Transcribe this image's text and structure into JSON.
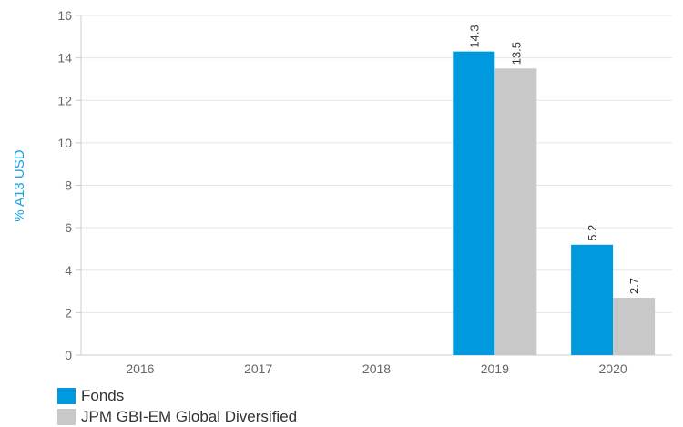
{
  "colors": {
    "fonds": "#0099dd",
    "benchmark": "#c8c8c8",
    "ylabel": "#1aa3e0"
  },
  "chart_data": {
    "type": "bar",
    "categories": [
      "2016",
      "2017",
      "2018",
      "2019",
      "2020"
    ],
    "series": [
      {
        "name": "Fonds",
        "values": [
          null,
          null,
          null,
          14.3,
          5.2
        ],
        "labels": [
          "",
          "",
          "",
          "14.3",
          "5.2"
        ]
      },
      {
        "name": "JPM GBI-EM Global Diversified",
        "values": [
          null,
          null,
          null,
          13.5,
          2.7
        ],
        "labels": [
          "",
          "",
          "",
          "13.5",
          "2.7"
        ]
      }
    ],
    "ylabel": "% A13 USD",
    "xlabel": "",
    "ylim": [
      0,
      16
    ],
    "yticks": [
      "0",
      "2",
      "4",
      "6",
      "8",
      "10",
      "12",
      "14",
      "16"
    ],
    "grid": true,
    "legend_position": "bottom-left"
  }
}
